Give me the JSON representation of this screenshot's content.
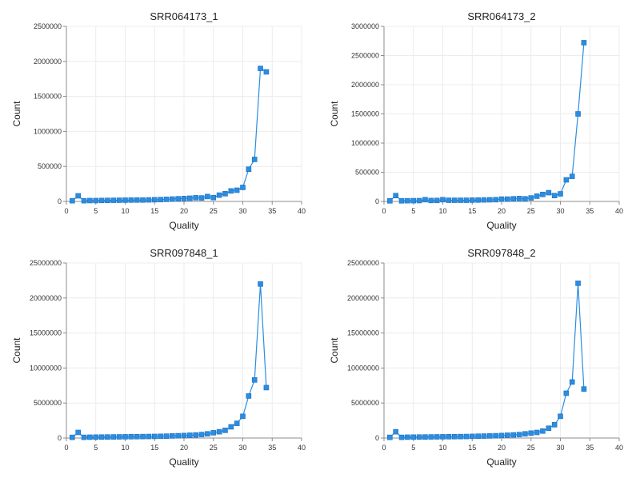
{
  "chart_data": [
    {
      "type": "line",
      "title": "SRR064173_1",
      "xlabel": "Quality",
      "ylabel": "Count",
      "xlim": [
        0,
        40
      ],
      "ylim": [
        0,
        2500000
      ],
      "xticks": [
        0,
        5,
        10,
        15,
        20,
        25,
        30,
        35,
        40
      ],
      "yticks": [
        0,
        500000,
        1000000,
        1500000,
        2000000,
        2500000
      ],
      "grid": true,
      "series": [
        {
          "name": "SRR064173_1",
          "color": "#2b8de0",
          "x": [
            1,
            2,
            3,
            4,
            5,
            6,
            7,
            8,
            9,
            10,
            11,
            12,
            13,
            14,
            15,
            16,
            17,
            18,
            19,
            20,
            21,
            22,
            23,
            24,
            25,
            26,
            27,
            28,
            29,
            30,
            31,
            32,
            33,
            34
          ],
          "y": [
            10000,
            80000,
            10000,
            12000,
            12000,
            14000,
            15000,
            16000,
            17000,
            18000,
            19000,
            20000,
            20000,
            22000,
            24000,
            26000,
            30000,
            34000,
            38000,
            42000,
            46000,
            52000,
            50000,
            70000,
            55000,
            90000,
            110000,
            150000,
            160000,
            200000,
            460000,
            600000,
            1900000,
            1850000
          ]
        }
      ]
    },
    {
      "type": "line",
      "title": "SRR064173_2",
      "xlabel": "Quality",
      "ylabel": "Count",
      "xlim": [
        0,
        40
      ],
      "ylim": [
        0,
        3000000
      ],
      "xticks": [
        0,
        5,
        10,
        15,
        20,
        25,
        30,
        35,
        40
      ],
      "yticks": [
        0,
        500000,
        1000000,
        1500000,
        2000000,
        2500000,
        3000000
      ],
      "grid": true,
      "series": [
        {
          "name": "SRR064173_2",
          "color": "#2b8de0",
          "x": [
            1,
            2,
            3,
            4,
            5,
            6,
            7,
            8,
            9,
            10,
            11,
            12,
            13,
            14,
            15,
            16,
            17,
            18,
            19,
            20,
            21,
            22,
            23,
            24,
            25,
            26,
            27,
            28,
            29,
            30,
            31,
            32,
            33,
            34
          ],
          "y": [
            10000,
            100000,
            10000,
            12000,
            13000,
            14000,
            30000,
            16000,
            17000,
            30000,
            20000,
            20000,
            20000,
            20000,
            22000,
            24000,
            26000,
            28000,
            30000,
            40000,
            40000,
            45000,
            50000,
            45000,
            60000,
            90000,
            120000,
            150000,
            100000,
            130000,
            370000,
            430000,
            1500000,
            2720000
          ]
        }
      ]
    },
    {
      "type": "line",
      "title": "SRR097848_1",
      "xlabel": "Quality",
      "ylabel": "Count",
      "xlim": [
        0,
        40
      ],
      "ylim": [
        0,
        25000000
      ],
      "xticks": [
        0,
        5,
        10,
        15,
        20,
        25,
        30,
        35,
        40
      ],
      "yticks": [
        0,
        5000000,
        10000000,
        15000000,
        20000000,
        25000000
      ],
      "grid": true,
      "series": [
        {
          "name": "SRR097848_1",
          "color": "#2b8de0",
          "x": [
            1,
            2,
            3,
            4,
            5,
            6,
            7,
            8,
            9,
            10,
            11,
            12,
            13,
            14,
            15,
            16,
            17,
            18,
            19,
            20,
            21,
            22,
            23,
            24,
            25,
            26,
            27,
            28,
            29,
            30,
            31,
            32,
            33,
            34
          ],
          "y": [
            100000,
            800000,
            100000,
            120000,
            130000,
            140000,
            150000,
            160000,
            170000,
            180000,
            190000,
            200000,
            210000,
            220000,
            230000,
            250000,
            270000,
            300000,
            330000,
            360000,
            400000,
            440000,
            500000,
            600000,
            750000,
            900000,
            1100000,
            1600000,
            2100000,
            3100000,
            6000000,
            8300000,
            22000000,
            7200000
          ]
        }
      ]
    },
    {
      "type": "line",
      "title": "SRR097848_2",
      "xlabel": "Quality",
      "ylabel": "Count",
      "xlim": [
        0,
        40
      ],
      "ylim": [
        0,
        25000000
      ],
      "xticks": [
        0,
        5,
        10,
        15,
        20,
        25,
        30,
        35,
        40
      ],
      "yticks": [
        0,
        5000000,
        10000000,
        15000000,
        20000000,
        25000000
      ],
      "grid": true,
      "series": [
        {
          "name": "SRR097848_2",
          "color": "#2b8de0",
          "x": [
            1,
            2,
            3,
            4,
            5,
            6,
            7,
            8,
            9,
            10,
            11,
            12,
            13,
            14,
            15,
            16,
            17,
            18,
            19,
            20,
            21,
            22,
            23,
            24,
            25,
            26,
            27,
            28,
            29,
            30,
            31,
            32,
            33,
            34
          ],
          "y": [
            100000,
            900000,
            100000,
            120000,
            130000,
            140000,
            150000,
            160000,
            170000,
            180000,
            190000,
            200000,
            210000,
            220000,
            240000,
            260000,
            280000,
            300000,
            330000,
            360000,
            400000,
            450000,
            500000,
            600000,
            700000,
            800000,
            1000000,
            1400000,
            1900000,
            3100000,
            6400000,
            8000000,
            22100000,
            7000000
          ]
        }
      ]
    }
  ]
}
